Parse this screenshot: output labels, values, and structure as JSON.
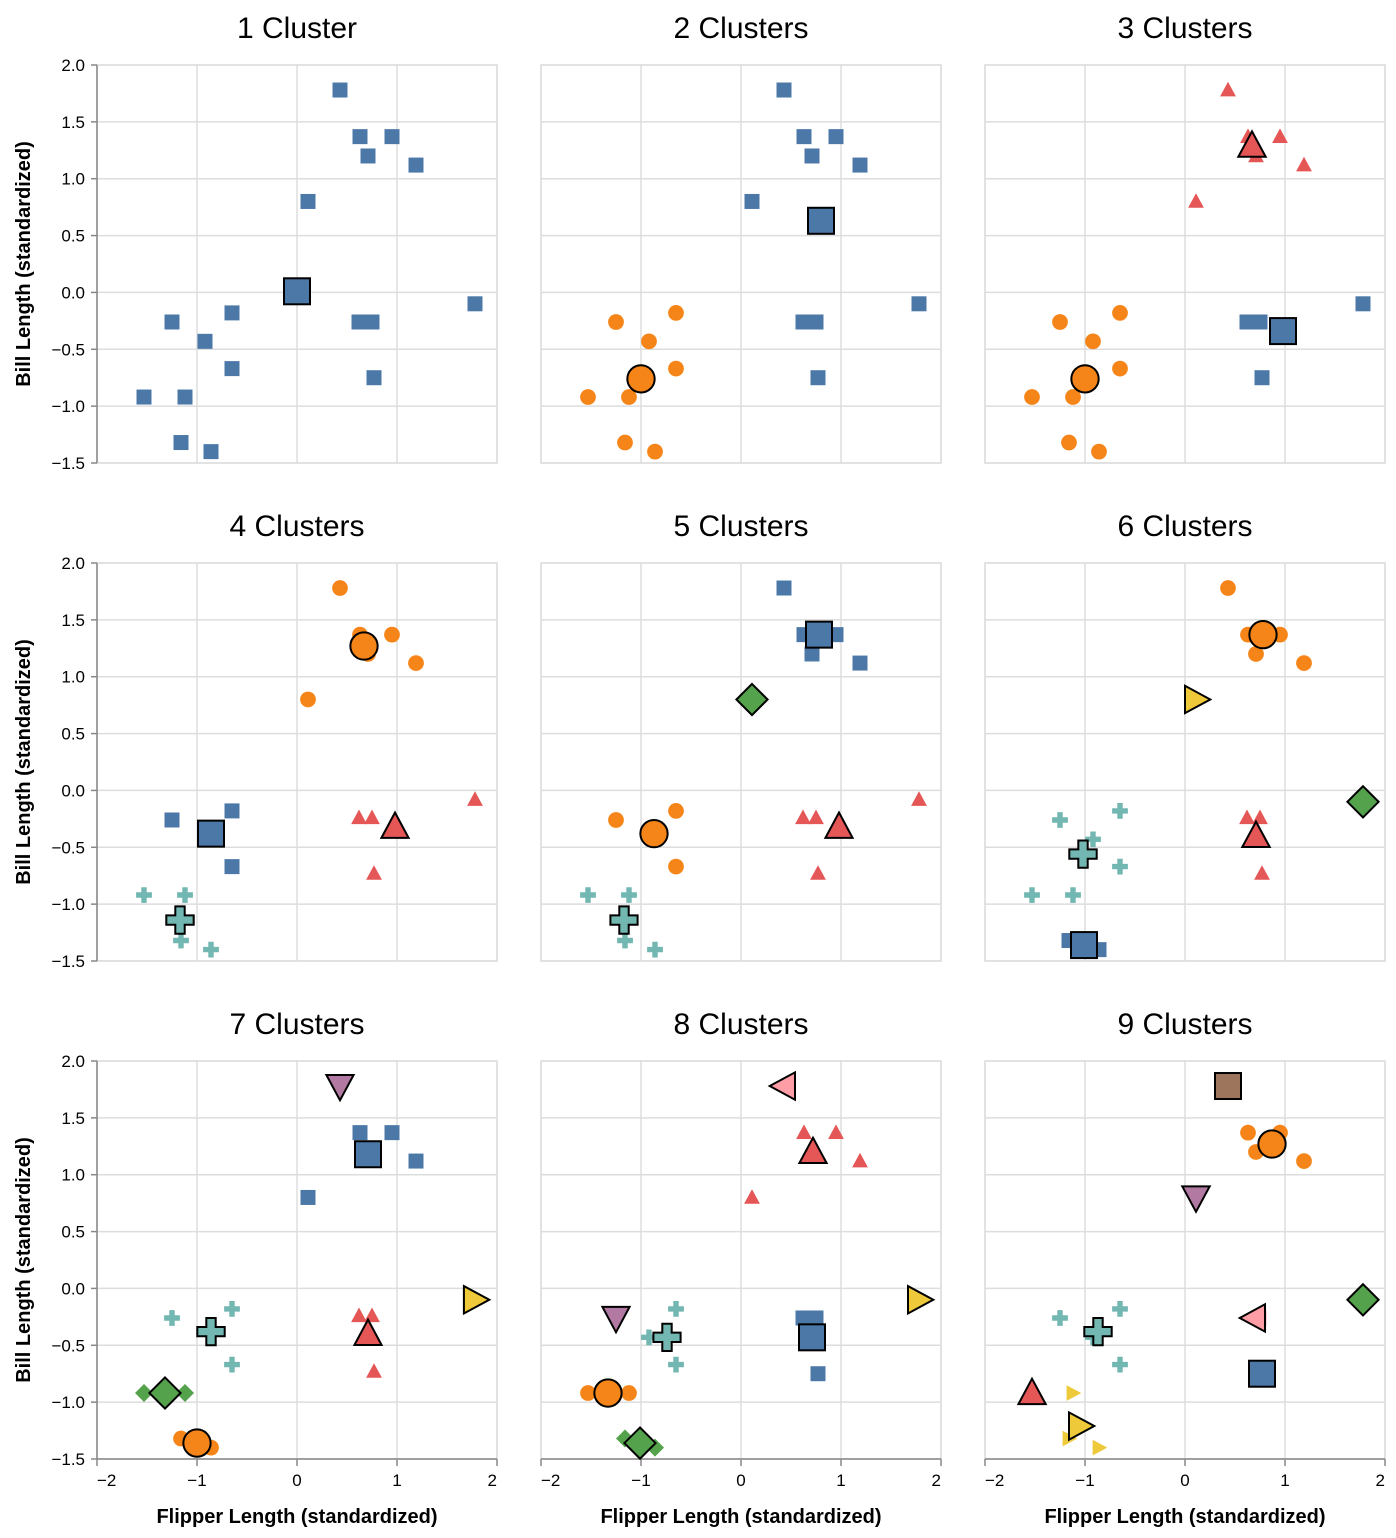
{
  "chart_data": {
    "type": "scatter",
    "xlabel": "Flipper Length (standardized)",
    "ylabel": "Bill Length (standardized)",
    "xlim": [
      -2,
      2
    ],
    "ylim": [
      -1.5,
      2.0
    ],
    "x_ticks": [
      "−2",
      "−1",
      "0",
      "1",
      "2"
    ],
    "y_ticks": [
      "2.0",
      "1.5",
      "1.0",
      "0.5",
      "0.0",
      "−0.5",
      "−1.0",
      "−1.5"
    ],
    "grid": true,
    "colors": [
      "#4c78a8",
      "#f58518",
      "#e45756",
      "#72b7b2",
      "#54a24b",
      "#eeca3b",
      "#b279a2",
      "#ff9da6",
      "#9d755d"
    ],
    "shapes": [
      "square",
      "circle",
      "triangle-up",
      "cross",
      "diamond",
      "triangle-right",
      "triangle-down",
      "triangle-left",
      "square"
    ],
    "panels": [
      {
        "title": "1 Cluster",
        "points": [
          [
            0.43,
            1.78,
            0
          ],
          [
            0.63,
            1.37,
            0
          ],
          [
            0.95,
            1.37,
            0
          ],
          [
            0.71,
            1.2,
            0
          ],
          [
            1.19,
            1.12,
            0
          ],
          [
            0.11,
            0.8,
            0
          ],
          [
            1.78,
            -0.1,
            0
          ],
          [
            -1.25,
            -0.26,
            0
          ],
          [
            0.62,
            -0.26,
            0
          ],
          [
            0.75,
            -0.26,
            0
          ],
          [
            -0.65,
            -0.18,
            0
          ],
          [
            -0.92,
            -0.43,
            0
          ],
          [
            -0.65,
            -0.67,
            0
          ],
          [
            0.77,
            -0.75,
            0
          ],
          [
            -1.53,
            -0.92,
            0
          ],
          [
            -1.12,
            -0.92,
            0
          ],
          [
            -1.16,
            -1.32,
            0
          ],
          [
            -0.86,
            -1.4,
            0
          ]
        ],
        "centroids": [
          [
            0.0,
            0.01,
            0
          ]
        ]
      },
      {
        "title": "2 Clusters",
        "points": [
          [
            0.43,
            1.78,
            0
          ],
          [
            0.63,
            1.37,
            0
          ],
          [
            0.95,
            1.37,
            0
          ],
          [
            0.71,
            1.2,
            0
          ],
          [
            1.19,
            1.12,
            0
          ],
          [
            0.11,
            0.8,
            0
          ],
          [
            1.78,
            -0.1,
            0
          ],
          [
            0.62,
            -0.26,
            0
          ],
          [
            0.75,
            -0.26,
            0
          ],
          [
            0.77,
            -0.75,
            0
          ],
          [
            -1.25,
            -0.26,
            1
          ],
          [
            -0.65,
            -0.18,
            1
          ],
          [
            -0.92,
            -0.43,
            1
          ],
          [
            -0.65,
            -0.67,
            1
          ],
          [
            -1.53,
            -0.92,
            1
          ],
          [
            -1.12,
            -0.92,
            1
          ],
          [
            -1.16,
            -1.32,
            1
          ],
          [
            -0.86,
            -1.4,
            1
          ]
        ],
        "centroids": [
          [
            0.8,
            0.63,
            0
          ],
          [
            -1.0,
            -0.76,
            1
          ]
        ]
      },
      {
        "title": "3 Clusters",
        "points": [
          [
            0.43,
            1.78,
            2
          ],
          [
            0.63,
            1.37,
            2
          ],
          [
            0.95,
            1.37,
            2
          ],
          [
            0.71,
            1.2,
            2
          ],
          [
            1.19,
            1.12,
            2
          ],
          [
            0.11,
            0.8,
            2
          ],
          [
            1.78,
            -0.1,
            0
          ],
          [
            0.62,
            -0.26,
            0
          ],
          [
            0.75,
            -0.26,
            0
          ],
          [
            0.77,
            -0.75,
            0
          ],
          [
            -1.25,
            -0.26,
            1
          ],
          [
            -0.65,
            -0.18,
            1
          ],
          [
            -0.92,
            -0.43,
            1
          ],
          [
            -0.65,
            -0.67,
            1
          ],
          [
            -1.53,
            -0.92,
            1
          ],
          [
            -1.12,
            -0.92,
            1
          ],
          [
            -1.16,
            -1.32,
            1
          ],
          [
            -0.86,
            -1.4,
            1
          ]
        ],
        "centroids": [
          [
            0.67,
            1.29,
            2
          ],
          [
            0.98,
            -0.34,
            0
          ],
          [
            -1.0,
            -0.76,
            1
          ]
        ]
      },
      {
        "title": "4 Clusters",
        "points": [
          [
            0.43,
            1.78,
            1
          ],
          [
            0.63,
            1.37,
            1
          ],
          [
            0.95,
            1.37,
            1
          ],
          [
            0.71,
            1.2,
            1
          ],
          [
            1.19,
            1.12,
            1
          ],
          [
            0.11,
            0.8,
            1
          ],
          [
            1.78,
            -0.08,
            2
          ],
          [
            0.62,
            -0.24,
            2
          ],
          [
            0.75,
            -0.24,
            2
          ],
          [
            0.77,
            -0.73,
            2
          ],
          [
            -1.25,
            -0.26,
            0
          ],
          [
            -0.65,
            -0.18,
            0
          ],
          [
            -0.65,
            -0.67,
            0
          ],
          [
            -1.53,
            -0.92,
            3
          ],
          [
            -1.12,
            -0.92,
            3
          ],
          [
            -1.16,
            -1.32,
            3
          ],
          [
            -0.86,
            -1.4,
            3
          ]
        ],
        "centroids": [
          [
            0.67,
            1.27,
            1
          ],
          [
            0.98,
            -0.32,
            2
          ],
          [
            -0.86,
            -0.38,
            0
          ],
          [
            -1.17,
            -1.14,
            3
          ]
        ]
      },
      {
        "title": "5 Clusters",
        "points": [
          [
            0.43,
            1.78,
            0
          ],
          [
            0.63,
            1.37,
            0
          ],
          [
            0.95,
            1.37,
            0
          ],
          [
            0.71,
            1.2,
            0
          ],
          [
            1.19,
            1.12,
            0
          ],
          [
            0.11,
            0.8,
            4
          ],
          [
            1.78,
            -0.08,
            2
          ],
          [
            0.62,
            -0.24,
            2
          ],
          [
            0.75,
            -0.24,
            2
          ],
          [
            0.77,
            -0.73,
            2
          ],
          [
            -1.25,
            -0.26,
            1
          ],
          [
            -0.65,
            -0.18,
            1
          ],
          [
            -0.65,
            -0.67,
            1
          ],
          [
            -1.53,
            -0.92,
            3
          ],
          [
            -1.12,
            -0.92,
            3
          ],
          [
            -1.16,
            -1.32,
            3
          ],
          [
            -0.86,
            -1.4,
            3
          ]
        ],
        "centroids": [
          [
            0.78,
            1.37,
            0
          ],
          [
            0.11,
            0.8,
            4
          ],
          [
            -0.87,
            -0.38,
            1
          ],
          [
            0.98,
            -0.32,
            2
          ],
          [
            -1.17,
            -1.14,
            3
          ]
        ]
      },
      {
        "title": "6 Clusters",
        "points": [
          [
            0.43,
            1.78,
            1
          ],
          [
            0.63,
            1.37,
            1
          ],
          [
            0.95,
            1.37,
            1
          ],
          [
            0.71,
            1.2,
            1
          ],
          [
            1.19,
            1.12,
            1
          ],
          [
            0.11,
            0.8,
            5
          ],
          [
            1.78,
            -0.1,
            4
          ],
          [
            0.62,
            -0.24,
            2
          ],
          [
            0.75,
            -0.24,
            2
          ],
          [
            0.77,
            -0.73,
            2
          ],
          [
            -1.25,
            -0.26,
            3
          ],
          [
            -0.65,
            -0.18,
            3
          ],
          [
            -0.92,
            -0.43,
            3
          ],
          [
            -0.65,
            -0.67,
            3
          ],
          [
            -1.53,
            -0.92,
            3
          ],
          [
            -1.12,
            -0.92,
            3
          ],
          [
            -1.16,
            -1.32,
            0
          ],
          [
            -0.86,
            -1.4,
            0
          ]
        ],
        "centroids": [
          [
            0.78,
            1.37,
            1
          ],
          [
            0.11,
            0.8,
            5
          ],
          [
            1.78,
            -0.1,
            4
          ],
          [
            0.71,
            -0.4,
            2
          ],
          [
            -1.02,
            -0.56,
            3
          ],
          [
            -1.01,
            -1.36,
            0
          ]
        ]
      },
      {
        "title": "7 Clusters",
        "points": [
          [
            0.43,
            1.78,
            6
          ],
          [
            0.63,
            1.37,
            0
          ],
          [
            0.95,
            1.37,
            0
          ],
          [
            1.19,
            1.12,
            0
          ],
          [
            0.11,
            0.8,
            0
          ],
          [
            1.78,
            -0.1,
            5
          ],
          [
            0.62,
            -0.24,
            2
          ],
          [
            0.75,
            -0.24,
            2
          ],
          [
            0.77,
            -0.73,
            2
          ],
          [
            -1.25,
            -0.26,
            3
          ],
          [
            -0.65,
            -0.18,
            3
          ],
          [
            -0.65,
            -0.67,
            3
          ],
          [
            -1.53,
            -0.92,
            4
          ],
          [
            -1.12,
            -0.92,
            4
          ],
          [
            -1.16,
            -1.32,
            1
          ],
          [
            -0.86,
            -1.4,
            1
          ]
        ],
        "centroids": [
          [
            0.43,
            1.78,
            6
          ],
          [
            0.71,
            1.18,
            0
          ],
          [
            1.78,
            -0.1,
            5
          ],
          [
            -0.86,
            -0.38,
            3
          ],
          [
            0.71,
            -0.4,
            2
          ],
          [
            -1.32,
            -0.92,
            4
          ],
          [
            -1.0,
            -1.36,
            1
          ]
        ]
      },
      {
        "title": "8 Clusters",
        "points": [
          [
            0.43,
            1.78,
            7
          ],
          [
            0.63,
            1.37,
            2
          ],
          [
            0.95,
            1.37,
            2
          ],
          [
            1.19,
            1.12,
            2
          ],
          [
            0.11,
            0.8,
            2
          ],
          [
            1.78,
            -0.1,
            5
          ],
          [
            0.62,
            -0.26,
            0
          ],
          [
            0.75,
            -0.26,
            0
          ],
          [
            0.77,
            -0.75,
            0
          ],
          [
            -1.25,
            -0.26,
            6
          ],
          [
            -0.65,
            -0.18,
            3
          ],
          [
            -0.92,
            -0.43,
            3
          ],
          [
            -0.65,
            -0.67,
            3
          ],
          [
            -1.53,
            -0.92,
            1
          ],
          [
            -1.12,
            -0.92,
            1
          ],
          [
            -1.16,
            -1.32,
            4
          ],
          [
            -0.86,
            -1.4,
            4
          ]
        ],
        "centroids": [
          [
            0.43,
            1.78,
            7
          ],
          [
            0.72,
            1.2,
            2
          ],
          [
            1.78,
            -0.1,
            5
          ],
          [
            -1.25,
            -0.26,
            6
          ],
          [
            -0.74,
            -0.43,
            3
          ],
          [
            0.71,
            -0.43,
            0
          ],
          [
            -1.33,
            -0.92,
            1
          ],
          [
            -1.01,
            -1.36,
            4
          ]
        ]
      },
      {
        "title": "9 Clusters",
        "points": [
          [
            0.43,
            1.78,
            8
          ],
          [
            0.63,
            1.37,
            1
          ],
          [
            0.95,
            1.37,
            1
          ],
          [
            0.71,
            1.2,
            1
          ],
          [
            1.19,
            1.12,
            1
          ],
          [
            0.11,
            0.8,
            6
          ],
          [
            1.78,
            -0.1,
            4
          ],
          [
            0.75,
            -0.26,
            7
          ],
          [
            0.77,
            -0.75,
            0
          ],
          [
            -1.25,
            -0.26,
            3
          ],
          [
            -0.65,
            -0.18,
            3
          ],
          [
            -0.92,
            -0.43,
            3
          ],
          [
            -0.65,
            -0.67,
            3
          ],
          [
            -1.53,
            -0.92,
            2
          ],
          [
            -1.12,
            -0.92,
            5
          ],
          [
            -1.16,
            -1.32,
            5
          ],
          [
            -0.86,
            -1.4,
            5
          ]
        ],
        "centroids": [
          [
            0.43,
            1.78,
            8
          ],
          [
            0.87,
            1.27,
            1
          ],
          [
            0.11,
            0.8,
            6
          ],
          [
            1.78,
            -0.1,
            4
          ],
          [
            0.69,
            -0.26,
            7
          ],
          [
            -0.87,
            -0.38,
            3
          ],
          [
            0.77,
            -0.75,
            0
          ],
          [
            -1.53,
            -0.92,
            2
          ],
          [
            -1.05,
            -1.21,
            5
          ]
        ]
      }
    ]
  }
}
